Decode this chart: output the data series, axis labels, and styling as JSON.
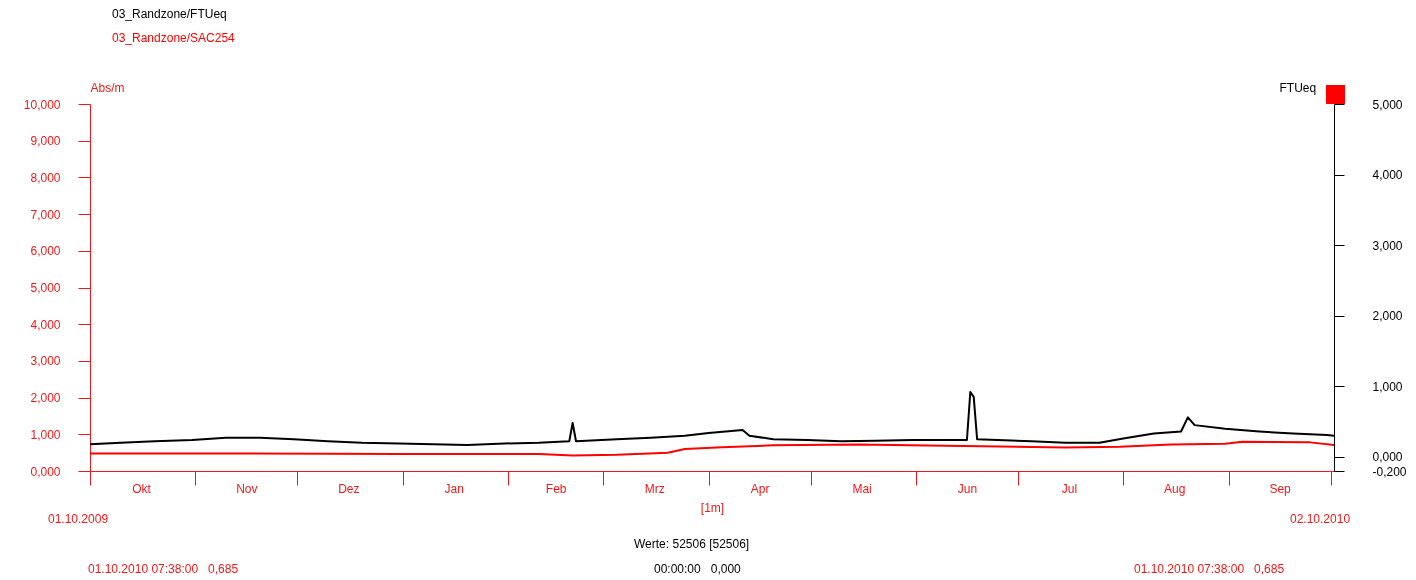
{
  "chart_data": {
    "type": "line",
    "xlabel": "[1m]",
    "ylabel": "Abs/m",
    "y2label": "FTUeq",
    "legend": "top left",
    "line_style": "solid",
    "xlim": [
      "2009-10-01",
      "2010-10-02"
    ],
    "xticks": [
      {
        "value": "2009-10-01",
        "label": null
      },
      {
        "value": "2009-11-01",
        "label": null
      },
      {
        "value": "2009-12-01",
        "label": null
      },
      {
        "value": "2010-01-01",
        "label": null
      },
      {
        "value": "2010-02-01",
        "label": null
      },
      {
        "value": "2010-03-01",
        "label": null
      },
      {
        "value": "2010-04-01",
        "label": null
      },
      {
        "value": "2010-05-01",
        "label": null
      },
      {
        "value": "2010-06-01",
        "label": null
      },
      {
        "value": "2010-07-01",
        "label": null
      },
      {
        "value": "2010-08-01",
        "label": null
      },
      {
        "value": "2010-09-01",
        "label": null
      },
      {
        "value": "2010-10-01",
        "label": null
      },
      {
        "value": "2009-10-16",
        "label": "Okt"
      },
      {
        "value": "2009-11-16",
        "label": "Nov"
      },
      {
        "value": "2009-12-16",
        "label": "Dez"
      },
      {
        "value": "2010-01-16",
        "label": "Jan"
      },
      {
        "value": "2010-02-15",
        "label": "Feb"
      },
      {
        "value": "2010-03-16",
        "label": "Mrz"
      },
      {
        "value": "2010-04-16",
        "label": "Apr"
      },
      {
        "value": "2010-05-16",
        "label": "Mai"
      },
      {
        "value": "2010-06-16",
        "label": "Jun"
      },
      {
        "value": "2010-07-16",
        "label": "Jul"
      },
      {
        "value": "2010-08-16",
        "label": "Aug"
      },
      {
        "value": "2010-09-16",
        "label": "Sep"
      }
    ],
    "ylim": [
      0,
      10
    ],
    "yticks": [
      {
        "value": 0,
        "label": "0,000"
      },
      {
        "value": 1,
        "label": "1,000"
      },
      {
        "value": 2,
        "label": "2,000"
      },
      {
        "value": 3,
        "label": "3,000"
      },
      {
        "value": 4,
        "label": "4,000"
      },
      {
        "value": 5,
        "label": "5,000"
      },
      {
        "value": 6,
        "label": "6,000"
      },
      {
        "value": 7,
        "label": "7,000"
      },
      {
        "value": 8,
        "label": "8,000"
      },
      {
        "value": 9,
        "label": "9,000"
      },
      {
        "value": 10,
        "label": "10,000"
      }
    ],
    "y2lim": [
      -0.2,
      5
    ],
    "y2ticks": [
      {
        "value": -0.2,
        "label": "-0,200"
      },
      {
        "value": 0,
        "label": "0,000"
      },
      {
        "value": 1,
        "label": "1,000"
      },
      {
        "value": 2,
        "label": "2,000"
      },
      {
        "value": 3,
        "label": "3,000"
      },
      {
        "value": 4,
        "label": "4,000"
      },
      {
        "value": 5,
        "label": "5,000"
      }
    ],
    "series": [
      {
        "name": "03_Randzone/FTUeq",
        "color": "#000000",
        "axis": "y2",
        "x": [
          "2009-10-01",
          "2009-10-10",
          "2009-10-20",
          "2009-10-31",
          "2009-11-10",
          "2009-11-20",
          "2009-11-30",
          "2009-12-10",
          "2009-12-20",
          "2009-12-31",
          "2010-01-10",
          "2010-01-20",
          "2010-01-31",
          "2010-02-10",
          "2010-02-19",
          "2010-02-20",
          "2010-02-21",
          "2010-03-05",
          "2010-03-15",
          "2010-03-25",
          "2010-04-01",
          "2010-04-11",
          "2010-04-13",
          "2010-04-20",
          "2010-04-30",
          "2010-05-10",
          "2010-05-20",
          "2010-05-31",
          "2010-06-10",
          "2010-06-16",
          "2010-06-17",
          "2010-06-18",
          "2010-06-19",
          "2010-06-25",
          "2010-07-05",
          "2010-07-15",
          "2010-07-25",
          "2010-08-01",
          "2010-08-10",
          "2010-08-18",
          "2010-08-20",
          "2010-08-22",
          "2010-08-31",
          "2010-09-10",
          "2010-09-20",
          "2010-09-30",
          "2010-10-02"
        ],
        "values": [
          0.18,
          0.2,
          0.22,
          0.24,
          0.27,
          0.27,
          0.25,
          0.22,
          0.2,
          0.19,
          0.18,
          0.17,
          0.19,
          0.2,
          0.22,
          0.48,
          0.22,
          0.25,
          0.27,
          0.3,
          0.34,
          0.38,
          0.3,
          0.25,
          0.24,
          0.22,
          0.23,
          0.24,
          0.24,
          0.24,
          0.92,
          0.85,
          0.25,
          0.24,
          0.22,
          0.2,
          0.2,
          0.26,
          0.33,
          0.36,
          0.56,
          0.45,
          0.4,
          0.36,
          0.33,
          0.31,
          0.3
        ]
      },
      {
        "name": "03_Randzone/SAC254",
        "color": "#ff0000",
        "x": [
          "2009-10-01",
          "2009-11-15",
          "2009-12-31",
          "2010-02-10",
          "2010-02-20",
          "2010-03-05",
          "2010-03-20",
          "2010-03-25",
          "2010-04-05",
          "2010-04-20",
          "2010-05-15",
          "2010-06-15",
          "2010-07-15",
          "2010-07-31",
          "2010-08-15",
          "2010-08-31",
          "2010-09-05",
          "2010-09-25",
          "2010-10-02"
        ],
        "values": [
          0.48,
          0.48,
          0.46,
          0.46,
          0.42,
          0.44,
          0.5,
          0.6,
          0.65,
          0.7,
          0.72,
          0.68,
          0.64,
          0.66,
          0.72,
          0.74,
          0.8,
          0.78,
          0.71
        ]
      }
    ],
    "annotations": [
      "01.10.2009",
      "02.10.2010",
      "Werte: 52506 [52506]",
      "01.10.2010 07:38:00   0,685",
      "00:00:00   0,000",
      "01.10.2010 07:38:00   0,685"
    ]
  }
}
